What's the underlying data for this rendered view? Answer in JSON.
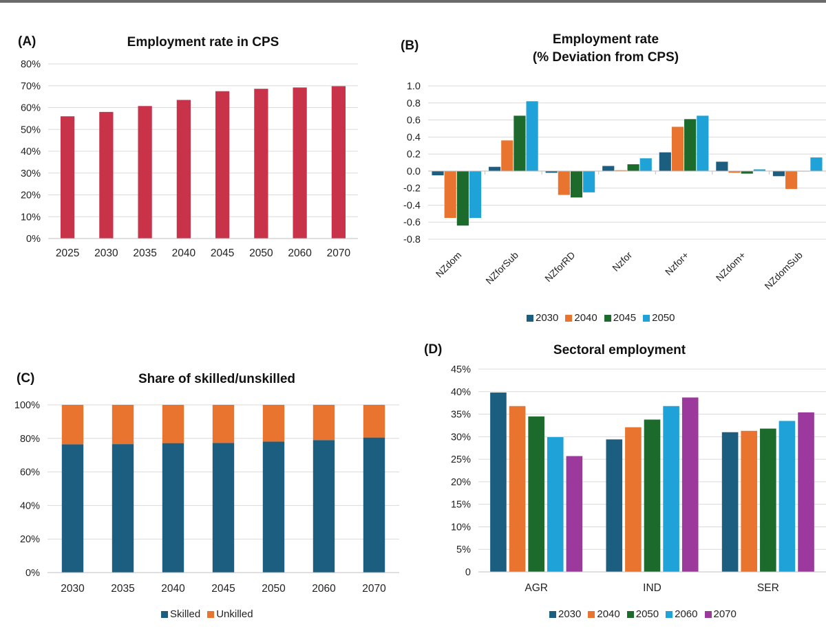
{
  "colors": {
    "red": "#c8334a",
    "navy": "#1b5e80",
    "orange": "#e87430",
    "green": "#1d6b2c",
    "sky": "#1fa2d8",
    "purple": "#9b3a9c",
    "grid": "#d9d9d9"
  },
  "chart_data": [
    {
      "id": "A",
      "panel_label": "(A)",
      "type": "bar",
      "title": "Employment rate in CPS",
      "categories": [
        "2025",
        "2030",
        "2035",
        "2040",
        "2045",
        "2050",
        "2060",
        "2070"
      ],
      "values": [
        56,
        58,
        60.7,
        63.5,
        67.5,
        68.6,
        69.2,
        69.8
      ],
      "ylim": [
        0,
        80
      ],
      "yticks": [
        0,
        10,
        20,
        30,
        40,
        50,
        60,
        70,
        80
      ],
      "ytick_labels": [
        "0%",
        "10%",
        "20%",
        "30%",
        "40%",
        "50%",
        "60%",
        "70%",
        "80%"
      ],
      "grid": true,
      "legend": "none"
    },
    {
      "id": "B",
      "panel_label": "(B)",
      "type": "bar",
      "title": "Employment rate",
      "subtitle": "(% Deviation from CPS)",
      "categories": [
        "NZdom",
        "NZforSub",
        "NZforRD",
        "Nzfor",
        "Nzfor+",
        "NZdom+",
        "NZdomSub"
      ],
      "series": [
        {
          "name": "2030",
          "color": "navy",
          "values": [
            -0.05,
            0.05,
            -0.02,
            0.06,
            0.22,
            0.11,
            -0.06
          ]
        },
        {
          "name": "2040",
          "color": "orange",
          "values": [
            -0.55,
            0.36,
            -0.28,
            0.01,
            0.52,
            -0.02,
            -0.21
          ]
        },
        {
          "name": "2045",
          "color": "green",
          "values": [
            -0.64,
            0.65,
            -0.31,
            0.08,
            0.61,
            -0.03,
            0.0
          ]
        },
        {
          "name": "2050",
          "color": "sky",
          "values": [
            -0.55,
            0.82,
            -0.25,
            0.15,
            0.65,
            0.02,
            0.16
          ]
        }
      ],
      "ylim": [
        -0.8,
        1.0
      ],
      "yticks": [
        -0.8,
        -0.6,
        -0.4,
        -0.2,
        0.0,
        0.2,
        0.4,
        0.6,
        0.8,
        1.0
      ],
      "ytick_labels": [
        "-0.8",
        "-0.6",
        "-0.4",
        "-0.2",
        "0.0",
        "0.2",
        "0.4",
        "0.6",
        "0.8",
        "1.0"
      ],
      "grid": true,
      "legend": "bottom"
    },
    {
      "id": "C",
      "panel_label": "(C)",
      "type": "bar",
      "stacked": true,
      "title": "Share of skilled/unskilled",
      "categories": [
        "2030",
        "2035",
        "2040",
        "2045",
        "2050",
        "2060",
        "2070"
      ],
      "series": [
        {
          "name": "Skilled",
          "color": "navy",
          "values": [
            76.5,
            76.6,
            77.2,
            77.3,
            78.1,
            79,
            80.5
          ]
        },
        {
          "name": "Unkilled",
          "color": "orange",
          "values": [
            23.5,
            23.4,
            22.8,
            22.7,
            21.9,
            21,
            19.5
          ]
        }
      ],
      "ylim": [
        0,
        100
      ],
      "yticks": [
        0,
        20,
        40,
        60,
        80,
        100
      ],
      "ytick_labels": [
        "0%",
        "20%",
        "40%",
        "60%",
        "80%",
        "100%"
      ],
      "grid": true,
      "legend": "bottom"
    },
    {
      "id": "D",
      "panel_label": "(D)",
      "type": "bar",
      "title": "Sectoral employment",
      "categories": [
        "AGR",
        "IND",
        "SER"
      ],
      "series": [
        {
          "name": "2030",
          "color": "navy",
          "values": [
            39.8,
            29.4,
            31
          ]
        },
        {
          "name": "2040",
          "color": "orange",
          "values": [
            36.8,
            32.1,
            31.3
          ]
        },
        {
          "name": "2050",
          "color": "green",
          "values": [
            34.5,
            33.8,
            31.8
          ]
        },
        {
          "name": "2060",
          "color": "sky",
          "values": [
            29.9,
            36.8,
            33.5
          ]
        },
        {
          "name": "2070",
          "color": "purple",
          "values": [
            25.7,
            38.7,
            35.4
          ]
        }
      ],
      "ylim": [
        0,
        45
      ],
      "yticks": [
        0,
        5,
        10,
        15,
        20,
        25,
        30,
        35,
        40,
        45
      ],
      "ytick_labels": [
        "0",
        "5%",
        "10%",
        "15%",
        "20%",
        "25%",
        "30%",
        "35%",
        "40%",
        "45%"
      ],
      "grid": true,
      "legend": "bottom"
    }
  ]
}
